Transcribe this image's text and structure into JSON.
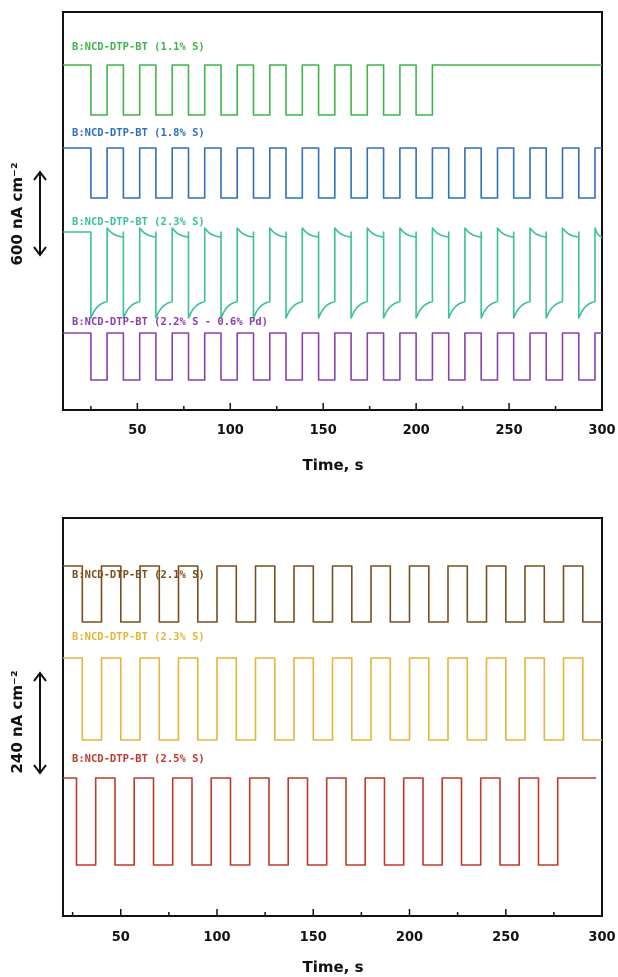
{
  "chart_data": [
    {
      "type": "line",
      "xlabel": "Time, s",
      "xlim": [
        10,
        300
      ],
      "xticks": [
        50,
        100,
        150,
        200,
        250,
        300
      ],
      "scale_bar": "600 nA cm⁻²",
      "grid": false,
      "series": [
        {
          "name": "B:NCD-DTP-BT (1.1% S)",
          "color": "#3fb44a",
          "pulse_start": 25,
          "pulse_period": 17.5,
          "pulses": 11,
          "high": 1.0,
          "low": 0.0,
          "shape": "square",
          "end_x": 300
        },
        {
          "name": "B:NCD-DTP-BT (1.8% S)",
          "color": "#2e6fbf",
          "pulse_start": 25,
          "pulse_period": 17.5,
          "pulses": 16,
          "high": 1.0,
          "low": 0.0,
          "shape": "square",
          "end_x": 300
        },
        {
          "name": "B:NCD-DTP-BT (2.3% S)",
          "color": "#3bbf9c",
          "pulse_start": 25,
          "pulse_period": 17.5,
          "pulses": 16,
          "high": 1.0,
          "low": 0.0,
          "shape": "decay",
          "end_x": 300
        },
        {
          "name": "B:NCD-DTP-BT (2.2% S - 0.6% Pd)",
          "color": "#8a3fb0",
          "pulse_start": 25,
          "pulse_period": 17.5,
          "pulses": 16,
          "high": 1.0,
          "low": 0.0,
          "shape": "square",
          "end_x": 300
        }
      ]
    },
    {
      "type": "line",
      "xlabel": "Time, s",
      "xlim": [
        20,
        300
      ],
      "xticks": [
        50,
        100,
        150,
        200,
        250,
        300
      ],
      "scale_bar": "240 nA cm⁻²",
      "grid": false,
      "series": [
        {
          "name": "B:NCD-DTP-BT (2.1% S)",
          "color": "#7a4e1e",
          "pulse_start": 30,
          "pulse_period": 20,
          "pulses": 14,
          "high": 1.0,
          "low": 0.0,
          "shape": "square",
          "end_x": 300
        },
        {
          "name": "B:NCD-DTP-BT (2.3% S)",
          "color": "#e6b43a",
          "pulse_start": 30,
          "pulse_period": 20,
          "pulses": 14,
          "high": 1.0,
          "low": 0.0,
          "shape": "square",
          "end_x": 300
        },
        {
          "name": "B:NCD-DTP-BT (2.5% S)",
          "color": "#c0392b",
          "pulse_start": 27,
          "pulse_period": 20,
          "pulses": 13,
          "high": 1.0,
          "low": 0.0,
          "shape": "square",
          "end_x": 297
        }
      ]
    }
  ]
}
